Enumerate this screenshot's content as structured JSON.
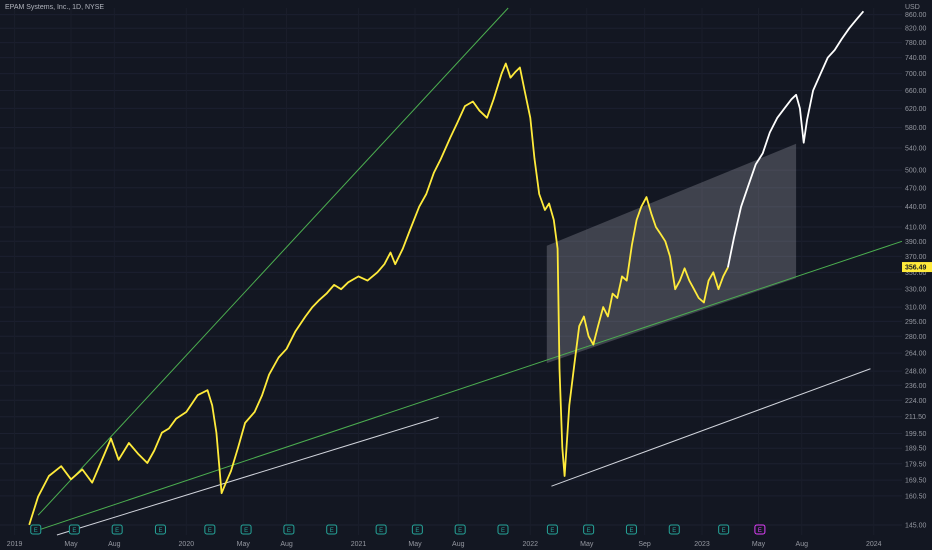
{
  "header": {
    "title": "EPAM Systems, Inc., 1D, NYSE"
  },
  "chart_data": {
    "type": "line",
    "title": "EPAM Systems, Inc., 1D, NYSE",
    "currency": "USD",
    "y_scale": "log",
    "ylim": [
      140,
      880
    ],
    "xlim": [
      "2018-12-01",
      "2024-03-01"
    ],
    "y_ticks": [
      "145.00",
      "160.50",
      "169.50",
      "179.50",
      "189.50",
      "199.50",
      "211.50",
      "224.00",
      "236.00",
      "248.00",
      "264.00",
      "280.00",
      "295.00",
      "310.00",
      "330.00",
      "350.00",
      "370.00",
      "390.00",
      "410.00",
      "440.00",
      "470.00",
      "500.00",
      "540.00",
      "580.00",
      "620.00",
      "660.00",
      "700.00",
      "740.00",
      "780.00",
      "820.00",
      "860.00"
    ],
    "x_ticks": [
      {
        "date": "2019-01-01",
        "label": "2019"
      },
      {
        "date": "2019-05-01",
        "label": "May"
      },
      {
        "date": "2019-08-01",
        "label": "Aug"
      },
      {
        "date": "2020-01-01",
        "label": "2020"
      },
      {
        "date": "2020-05-01",
        "label": "May"
      },
      {
        "date": "2020-08-01",
        "label": "Aug"
      },
      {
        "date": "2021-01-01",
        "label": "2021"
      },
      {
        "date": "2021-05-01",
        "label": "May"
      },
      {
        "date": "2021-08-01",
        "label": "Aug"
      },
      {
        "date": "2022-01-01",
        "label": "2022"
      },
      {
        "date": "2022-05-01",
        "label": "May"
      },
      {
        "date": "2022-09-01",
        "label": "Sep"
      },
      {
        "date": "2023-01-01",
        "label": "2023"
      },
      {
        "date": "2023-05-01",
        "label": "May"
      },
      {
        "date": "2023-08-01",
        "label": "Aug"
      },
      {
        "date": "2024-01-01",
        "label": "2024"
      }
    ],
    "last_price": {
      "label": "356.49",
      "value": 356.49,
      "color": "#ffeb3b"
    },
    "series": [
      {
        "color": "#ffeb3b",
        "points": [
          [
            "2019-02-01",
            145
          ],
          [
            "2019-02-20",
            160
          ],
          [
            "2019-03-15",
            172
          ],
          [
            "2019-04-10",
            178
          ],
          [
            "2019-05-01",
            170
          ],
          [
            "2019-05-25",
            176
          ],
          [
            "2019-06-15",
            168
          ],
          [
            "2019-07-10",
            185
          ],
          [
            "2019-07-25",
            196
          ],
          [
            "2019-08-10",
            182
          ],
          [
            "2019-09-01",
            193
          ],
          [
            "2019-09-20",
            186
          ],
          [
            "2019-10-10",
            180
          ],
          [
            "2019-10-25",
            188
          ],
          [
            "2019-11-10",
            200
          ],
          [
            "2019-11-25",
            203
          ],
          [
            "2019-12-10",
            210
          ],
          [
            "2020-01-01",
            215
          ],
          [
            "2020-01-25",
            228
          ],
          [
            "2020-02-15",
            232
          ],
          [
            "2020-02-25",
            220
          ],
          [
            "2020-03-05",
            200
          ],
          [
            "2020-03-16",
            162
          ],
          [
            "2020-03-25",
            168
          ],
          [
            "2020-04-05",
            175
          ],
          [
            "2020-04-20",
            190
          ],
          [
            "2020-05-05",
            207
          ],
          [
            "2020-05-25",
            215
          ],
          [
            "2020-06-10",
            228
          ],
          [
            "2020-06-25",
            245
          ],
          [
            "2020-07-15",
            260
          ],
          [
            "2020-08-01",
            268
          ],
          [
            "2020-08-20",
            285
          ],
          [
            "2020-09-10",
            300
          ],
          [
            "2020-09-25",
            310
          ],
          [
            "2020-10-10",
            318
          ],
          [
            "2020-10-25",
            325
          ],
          [
            "2020-11-10",
            335
          ],
          [
            "2020-11-25",
            330
          ],
          [
            "2020-12-10",
            338
          ],
          [
            "2021-01-01",
            345
          ],
          [
            "2021-01-20",
            340
          ],
          [
            "2021-02-10",
            350
          ],
          [
            "2021-02-25",
            360
          ],
          [
            "2021-03-10",
            375
          ],
          [
            "2021-03-20",
            360
          ],
          [
            "2021-04-05",
            380
          ],
          [
            "2021-04-20",
            405
          ],
          [
            "2021-05-10",
            440
          ],
          [
            "2021-05-25",
            460
          ],
          [
            "2021-06-10",
            495
          ],
          [
            "2021-06-25",
            520
          ],
          [
            "2021-07-15",
            560
          ],
          [
            "2021-07-30",
            590
          ],
          [
            "2021-08-15",
            625
          ],
          [
            "2021-09-01",
            635
          ],
          [
            "2021-09-15",
            615
          ],
          [
            "2021-10-01",
            600
          ],
          [
            "2021-10-15",
            640
          ],
          [
            "2021-11-01",
            700
          ],
          [
            "2021-11-10",
            725
          ],
          [
            "2021-11-20",
            690
          ],
          [
            "2021-12-01",
            705
          ],
          [
            "2021-12-10",
            715
          ],
          [
            "2021-12-20",
            660
          ],
          [
            "2022-01-01",
            600
          ],
          [
            "2022-01-10",
            520
          ],
          [
            "2022-01-20",
            460
          ],
          [
            "2022-02-01",
            435
          ],
          [
            "2022-02-10",
            445
          ],
          [
            "2022-02-20",
            420
          ],
          [
            "2022-02-28",
            380
          ],
          [
            "2022-03-04",
            250
          ],
          [
            "2022-03-10",
            190
          ],
          [
            "2022-03-15",
            172
          ],
          [
            "2022-03-25",
            220
          ],
          [
            "2022-04-05",
            255
          ],
          [
            "2022-04-15",
            290
          ],
          [
            "2022-04-25",
            300
          ],
          [
            "2022-05-05",
            280
          ],
          [
            "2022-05-15",
            272
          ],
          [
            "2022-05-25",
            290
          ],
          [
            "2022-06-05",
            310
          ],
          [
            "2022-06-15",
            300
          ],
          [
            "2022-06-25",
            325
          ],
          [
            "2022-07-05",
            320
          ],
          [
            "2022-07-15",
            345
          ],
          [
            "2022-07-25",
            340
          ],
          [
            "2022-08-05",
            385
          ],
          [
            "2022-08-15",
            420
          ],
          [
            "2022-08-25",
            440
          ],
          [
            "2022-09-05",
            455
          ],
          [
            "2022-09-15",
            430
          ],
          [
            "2022-09-25",
            410
          ],
          [
            "2022-10-05",
            400
          ],
          [
            "2022-10-15",
            390
          ],
          [
            "2022-10-25",
            370
          ],
          [
            "2022-11-05",
            330
          ],
          [
            "2022-11-15",
            340
          ],
          [
            "2022-11-25",
            355
          ],
          [
            "2022-12-05",
            340
          ],
          [
            "2022-12-15",
            330
          ],
          [
            "2022-12-25",
            320
          ],
          [
            "2023-01-05",
            315
          ],
          [
            "2023-01-15",
            340
          ],
          [
            "2023-01-25",
            350
          ],
          [
            "2023-02-05",
            330
          ],
          [
            "2023-02-15",
            345
          ],
          [
            "2023-02-25",
            356
          ]
        ]
      },
      {
        "color": "#ffffff",
        "points": [
          [
            "2023-02-25",
            356
          ],
          [
            "2023-03-10",
            395
          ],
          [
            "2023-03-25",
            440
          ],
          [
            "2023-04-10",
            475
          ],
          [
            "2023-04-25",
            510
          ],
          [
            "2023-05-10",
            530
          ],
          [
            "2023-05-25",
            570
          ],
          [
            "2023-06-10",
            600
          ],
          [
            "2023-06-25",
            620
          ],
          [
            "2023-07-10",
            640
          ],
          [
            "2023-07-20",
            650
          ],
          [
            "2023-07-28",
            620
          ],
          [
            "2023-08-05",
            550
          ],
          [
            "2023-08-12",
            595
          ],
          [
            "2023-08-25",
            660
          ],
          [
            "2023-09-10",
            700
          ],
          [
            "2023-09-25",
            740
          ],
          [
            "2023-10-10",
            760
          ],
          [
            "2023-10-25",
            790
          ],
          [
            "2023-11-10",
            820
          ],
          [
            "2023-11-25",
            845
          ],
          [
            "2023-12-10",
            870
          ]
        ]
      }
    ],
    "trendlines": [
      {
        "color": "#4caf50",
        "from": [
          "2019-02-20",
          150
        ],
        "to": [
          "2021-11-15",
          880
        ]
      },
      {
        "color": "#4caf50",
        "from": [
          "2019-02-15",
          142
        ],
        "to": [
          "2024-03-01",
          390
        ]
      },
      {
        "color": "#d1d4dc",
        "from": [
          "2019-04-01",
          140
        ],
        "to": [
          "2021-06-20",
          211
        ]
      },
      {
        "color": "#d1d4dc",
        "from": [
          "2022-02-15",
          166
        ],
        "to": [
          "2023-12-25",
          250
        ]
      }
    ],
    "channel": {
      "color": "#b2b5be",
      "points": [
        [
          "2022-02-05",
          384
        ],
        [
          "2023-07-20",
          548
        ],
        [
          "2023-07-20",
          343
        ],
        [
          "2022-02-05",
          255
        ]
      ]
    },
    "earnings_markers": [
      {
        "date": "2019-02-15",
        "label": "E",
        "color": "#26a69a"
      },
      {
        "date": "2019-05-08",
        "label": "E",
        "color": "#26a69a"
      },
      {
        "date": "2019-08-07",
        "label": "E",
        "color": "#26a69a"
      },
      {
        "date": "2019-11-07",
        "label": "E",
        "color": "#26a69a"
      },
      {
        "date": "2020-02-20",
        "label": "E",
        "color": "#26a69a"
      },
      {
        "date": "2020-05-07",
        "label": "E",
        "color": "#26a69a"
      },
      {
        "date": "2020-08-06",
        "label": "E",
        "color": "#26a69a"
      },
      {
        "date": "2020-11-05",
        "label": "E",
        "color": "#26a69a"
      },
      {
        "date": "2021-02-18",
        "label": "E",
        "color": "#26a69a"
      },
      {
        "date": "2021-05-06",
        "label": "E",
        "color": "#26a69a"
      },
      {
        "date": "2021-08-05",
        "label": "E",
        "color": "#26a69a"
      },
      {
        "date": "2021-11-04",
        "label": "E",
        "color": "#26a69a"
      },
      {
        "date": "2022-02-17",
        "label": "E",
        "color": "#26a69a"
      },
      {
        "date": "2022-05-05",
        "label": "E",
        "color": "#26a69a"
      },
      {
        "date": "2022-08-04",
        "label": "E",
        "color": "#26a69a"
      },
      {
        "date": "2022-11-03",
        "label": "E",
        "color": "#26a69a"
      },
      {
        "date": "2023-02-16",
        "label": "E",
        "color": "#26a69a"
      },
      {
        "date": "2023-05-04",
        "label": "E",
        "color": "#e040fb"
      }
    ]
  }
}
